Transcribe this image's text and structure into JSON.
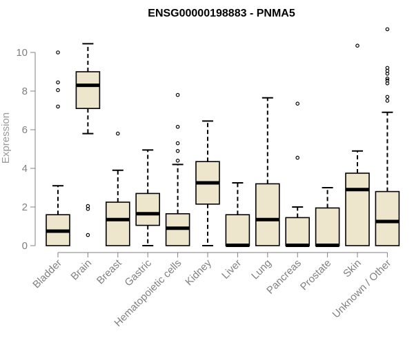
{
  "chart_data": {
    "type": "boxplot",
    "title": "ENSG00000198883 - PNMA5",
    "xlabel": "",
    "ylabel": "Expression",
    "ylim": [
      0,
      11.2
    ],
    "yticks": [
      0,
      2,
      4,
      6,
      8,
      10
    ],
    "box_fill": "#ede6cc",
    "categories": [
      "Bladder",
      "Brain",
      "Breast",
      "Gastric",
      "Hematopoietic cells",
      "Kidney",
      "Liver",
      "Lung",
      "Pancreas",
      "Prostate",
      "Skin",
      "Unknown / Other"
    ],
    "boxes": [
      {
        "category": "Bladder",
        "whisker_low": 0.0,
        "q1": 0.0,
        "median": 0.75,
        "q3": 1.6,
        "whisker_high": 3.1,
        "outliers": [
          7.2,
          8.05,
          8.45,
          10.0
        ]
      },
      {
        "category": "Brain",
        "whisker_low": 5.8,
        "q1": 7.1,
        "median": 8.3,
        "q3": 9.0,
        "whisker_high": 10.45,
        "outliers": [
          0.55,
          1.9,
          2.05
        ]
      },
      {
        "category": "Breast",
        "whisker_low": 0.0,
        "q1": 0.0,
        "median": 1.35,
        "q3": 2.25,
        "whisker_high": 3.9,
        "outliers": [
          5.8
        ]
      },
      {
        "category": "Gastric",
        "whisker_low": 0.0,
        "q1": 1.05,
        "median": 1.65,
        "q3": 2.7,
        "whisker_high": 4.95,
        "outliers": []
      },
      {
        "category": "Hematopoietic cells",
        "whisker_low": 0.0,
        "q1": 0.0,
        "median": 0.9,
        "q3": 1.65,
        "whisker_high": 4.2,
        "outliers": [
          4.4,
          4.9,
          5.3,
          6.15,
          7.8
        ]
      },
      {
        "category": "Kidney",
        "whisker_low": 0.0,
        "q1": 2.15,
        "median": 3.25,
        "q3": 4.35,
        "whisker_high": 6.45,
        "outliers": []
      },
      {
        "category": "Liver",
        "whisker_low": 0.0,
        "q1": 0.0,
        "median": 0.02,
        "q3": 1.6,
        "whisker_high": 3.25,
        "outliers": []
      },
      {
        "category": "Lung",
        "whisker_low": 0.0,
        "q1": 0.0,
        "median": 1.35,
        "q3": 3.2,
        "whisker_high": 7.65,
        "outliers": []
      },
      {
        "category": "Pancreas",
        "whisker_low": 0.0,
        "q1": 0.0,
        "median": 0.02,
        "q3": 1.45,
        "whisker_high": 2.0,
        "outliers": [
          4.55,
          7.35
        ]
      },
      {
        "category": "Prostate",
        "whisker_low": 0.0,
        "q1": 0.0,
        "median": 0.02,
        "q3": 1.95,
        "whisker_high": 3.0,
        "outliers": []
      },
      {
        "category": "Skin",
        "whisker_low": 0.0,
        "q1": 0.0,
        "median": 2.9,
        "q3": 3.75,
        "whisker_high": 4.9,
        "outliers": [
          10.35
        ]
      },
      {
        "category": "Unknown / Other",
        "whisker_low": 0.0,
        "q1": 0.0,
        "median": 1.25,
        "q3": 2.8,
        "whisker_high": 6.9,
        "outliers": [
          7.5,
          7.7,
          8.4,
          8.55,
          8.65,
          8.9,
          9.05,
          9.2,
          11.2
        ]
      }
    ]
  }
}
